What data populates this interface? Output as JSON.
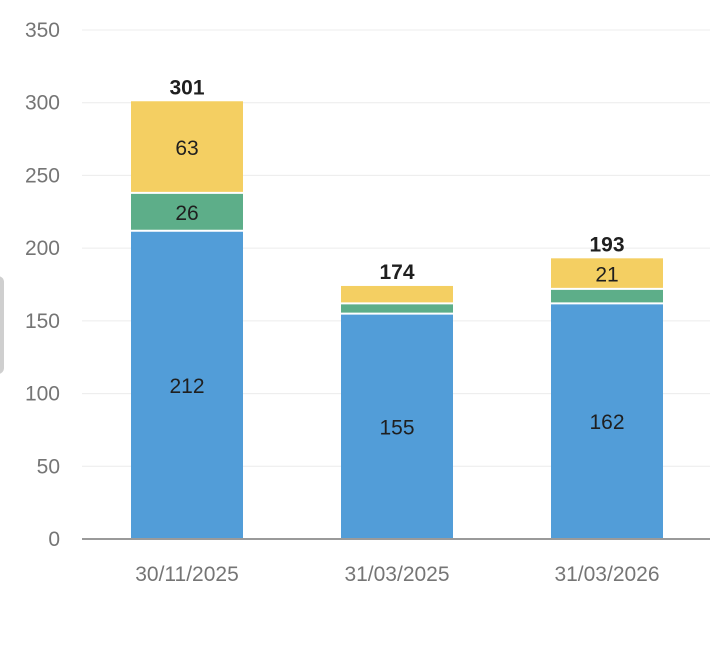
{
  "chart_data": {
    "type": "bar",
    "stacked": true,
    "categories": [
      "30/11/2025",
      "31/03/2025",
      "31/03/2026"
    ],
    "series": [
      {
        "values": [
          212,
          155,
          162
        ],
        "color": "#529dd8",
        "labels": [
          "212",
          "155",
          "162"
        ]
      },
      {
        "values": [
          26,
          7,
          10
        ],
        "color": "#5dae89",
        "labels": [
          "26",
          "",
          ""
        ]
      },
      {
        "values": [
          63,
          12,
          21
        ],
        "color": "#f4cf62",
        "labels": [
          "63",
          "",
          "21"
        ]
      }
    ],
    "totals": [
      "301",
      "174",
      "193"
    ],
    "y_ticks": [
      "0",
      "50",
      "100",
      "150",
      "200",
      "250",
      "300",
      "350"
    ],
    "ylim": [
      0,
      350
    ],
    "grid": true,
    "legend": "none"
  }
}
